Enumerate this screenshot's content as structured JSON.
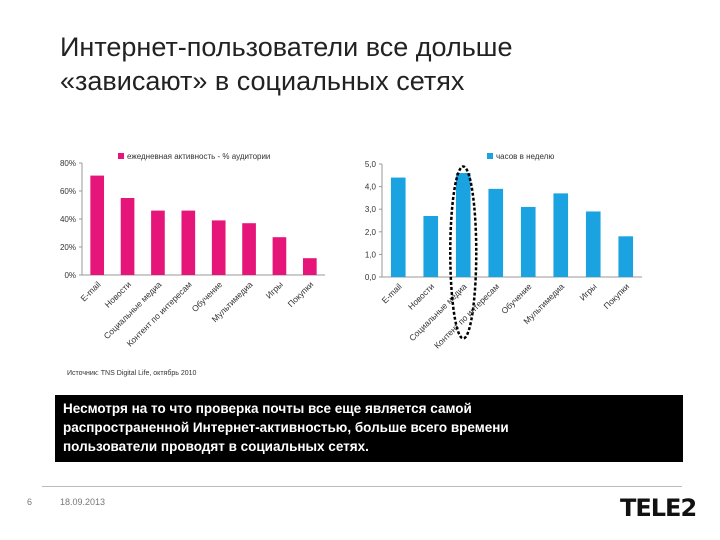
{
  "slide": {
    "title_line1": "Интернет-пользователи все дольше",
    "title_line2": "«зависают» в социальных сетях",
    "source": "Источник: TNS Digital Life, октябрь 2010",
    "callout_line1": "Несмотря на то что проверка почты все еще является самой",
    "callout_line2": "распространенной Интернет-активностью, больше всего времени",
    "callout_line3": "пользователи проводят в социальных сетях.",
    "page_number": "6",
    "date": "18.09.2013",
    "logo": "TELE2"
  },
  "chart_data": [
    {
      "type": "bar",
      "legend": "ежедневная активность - % аудитории",
      "legend_position": "top",
      "categories": [
        "E-mail",
        "Новости",
        "Социальные медиа",
        "Контент по интересам",
        "Обучение",
        "Мультимедиа",
        "Игры",
        "Покупки"
      ],
      "values": [
        71,
        55,
        46,
        46,
        39,
        37,
        27,
        12
      ],
      "ylim": [
        0,
        80
      ],
      "ytick_labels": [
        "0%",
        "20%",
        "40%",
        "60%",
        "80%"
      ],
      "yticks": [
        0,
        20,
        40,
        60,
        80
      ],
      "grid": false,
      "color": "#e5157a"
    },
    {
      "type": "bar",
      "legend": "часов в неделю",
      "legend_position": "top",
      "categories": [
        "E-mail",
        "Новости",
        "Социальные медиа",
        "Контент по интересам",
        "Обучение",
        "Мультимедиа",
        "Игры",
        "Покупки"
      ],
      "values": [
        4.4,
        2.7,
        4.6,
        3.9,
        3.1,
        3.7,
        2.9,
        1.8
      ],
      "ylim": [
        0,
        5
      ],
      "ytick_labels": [
        "0,0",
        "1,0",
        "2,0",
        "3,0",
        "4,0",
        "5,0"
      ],
      "yticks": [
        0,
        1,
        2,
        3,
        4,
        5
      ],
      "grid": false,
      "color": "#1aa3e0",
      "highlight_index": 2
    }
  ]
}
